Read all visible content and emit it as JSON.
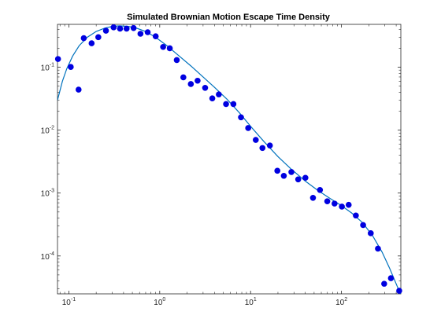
{
  "chart_data": {
    "type": "scatter",
    "title": "Simulated Brownian Motion Escape Time Density",
    "xlabel": "",
    "ylabel": "",
    "xscale": "log",
    "yscale": "log",
    "xlim": [
      0.075,
      450
    ],
    "ylim": [
      2.5e-05,
      0.48
    ],
    "grid": false,
    "legend": "none",
    "x_ticks": [
      {
        "value": 0.1,
        "base": "10",
        "exp": "-1"
      },
      {
        "value": 1,
        "base": "10",
        "exp": "0"
      },
      {
        "value": 10,
        "base": "10",
        "exp": "1"
      },
      {
        "value": 100,
        "base": "10",
        "exp": "2"
      }
    ],
    "y_ticks": [
      {
        "value": 0.0001,
        "base": "10",
        "exp": "-4"
      },
      {
        "value": 0.001,
        "base": "10",
        "exp": "-3"
      },
      {
        "value": 0.01,
        "base": "10",
        "exp": "-2"
      },
      {
        "value": 0.1,
        "base": "10",
        "exp": "-1"
      }
    ],
    "series": [
      {
        "kind": "markers",
        "color": "#0000e0",
        "points": [
          [
            0.076,
            0.135
          ],
          [
            0.105,
            0.101
          ],
          [
            0.128,
            0.044
          ],
          [
            0.146,
            0.29
          ],
          [
            0.178,
            0.24
          ],
          [
            0.211,
            0.3
          ],
          [
            0.256,
            0.38
          ],
          [
            0.311,
            0.43
          ],
          [
            0.366,
            0.41
          ],
          [
            0.432,
            0.41
          ],
          [
            0.516,
            0.42
          ],
          [
            0.614,
            0.34
          ],
          [
            0.737,
            0.36
          ],
          [
            0.903,
            0.31
          ],
          [
            1.09,
            0.21
          ],
          [
            1.29,
            0.2
          ],
          [
            1.54,
            0.13
          ],
          [
            1.82,
            0.069
          ],
          [
            2.2,
            0.054
          ],
          [
            2.61,
            0.061
          ],
          [
            3.16,
            0.047
          ],
          [
            3.79,
            0.032
          ],
          [
            4.47,
            0.037
          ],
          [
            5.37,
            0.026
          ],
          [
            6.47,
            0.026
          ],
          [
            7.84,
            0.016
          ],
          [
            9.41,
            0.0108
          ],
          [
            11.4,
            0.007
          ],
          [
            13.5,
            0.0052
          ],
          [
            16.3,
            0.0057
          ],
          [
            19.7,
            0.00226
          ],
          [
            23.2,
            0.00188
          ],
          [
            28.1,
            0.00216
          ],
          [
            33.4,
            0.00165
          ],
          [
            40.1,
            0.00175
          ],
          [
            48.6,
            0.00084
          ],
          [
            58.0,
            0.00112
          ],
          [
            69.8,
            0.00074
          ],
          [
            83.9,
            0.00068
          ],
          [
            101.0,
            0.00061
          ],
          [
            120.0,
            0.00065
          ],
          [
            144.0,
            0.00044
          ],
          [
            173.0,
            0.00031
          ],
          [
            210.0,
            0.00023
          ],
          [
            252.0,
            0.000131
          ],
          [
            295.0,
            3.62e-05
          ],
          [
            350.0,
            4.44e-05
          ],
          [
            432.0,
            2.8e-05
          ]
        ]
      },
      {
        "kind": "line",
        "color": "#0072bd",
        "points": [
          [
            0.075,
            0.03
          ],
          [
            0.085,
            0.06
          ],
          [
            0.095,
            0.095
          ],
          [
            0.11,
            0.15
          ],
          [
            0.13,
            0.22
          ],
          [
            0.16,
            0.3
          ],
          [
            0.2,
            0.37
          ],
          [
            0.25,
            0.42
          ],
          [
            0.3,
            0.445
          ],
          [
            0.36,
            0.455
          ],
          [
            0.45,
            0.445
          ],
          [
            0.55,
            0.42
          ],
          [
            0.7,
            0.37
          ],
          [
            0.9,
            0.3
          ],
          [
            1.2,
            0.22
          ],
          [
            1.6,
            0.155
          ],
          [
            2.2,
            0.105
          ],
          [
            3.0,
            0.07
          ],
          [
            4.0,
            0.048
          ],
          [
            5.5,
            0.031
          ],
          [
            7.5,
            0.019
          ],
          [
            10.0,
            0.0115
          ],
          [
            14.0,
            0.0066
          ],
          [
            20.0,
            0.0038
          ],
          [
            28.0,
            0.0024
          ],
          [
            40.0,
            0.00155
          ],
          [
            55.0,
            0.0011
          ],
          [
            75.0,
            0.00082
          ],
          [
            100.0,
            0.00063
          ],
          [
            130.0,
            0.00048
          ],
          [
            170.0,
            0.00034
          ],
          [
            220.0,
            0.00021
          ],
          [
            280.0,
            0.000115
          ],
          [
            340.0,
            6.3e-05
          ],
          [
            400.0,
            3.6e-05
          ],
          [
            450.0,
            2.4e-05
          ]
        ]
      }
    ]
  }
}
